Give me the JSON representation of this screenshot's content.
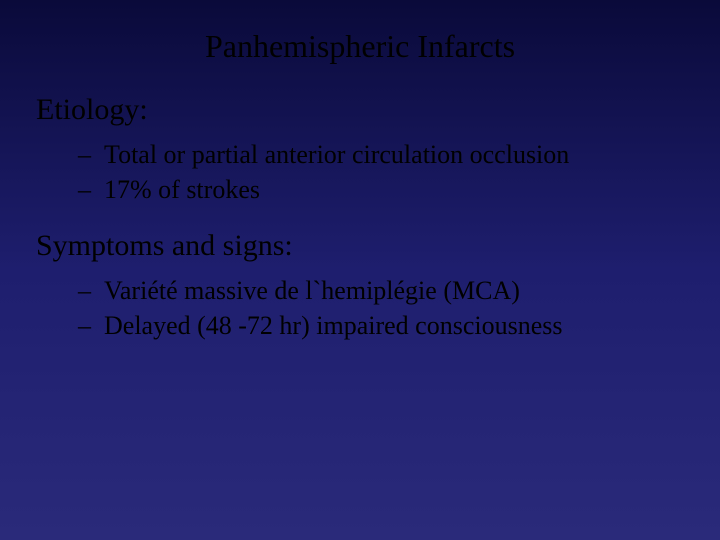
{
  "background": {
    "gradient_top": "#0a0a3a",
    "gradient_mid": "#1e1e6e",
    "gradient_bottom": "#2a2a7a"
  },
  "text_color": "#000000",
  "font_family": "Times New Roman",
  "title": {
    "text": "Panhemispheric Infarcts",
    "fontsize": 32
  },
  "sections": [
    {
      "heading": "Etiology:",
      "heading_fontsize": 30,
      "bullets": [
        "Total or partial anterior circulation occlusion",
        "17% of strokes"
      ],
      "bullet_fontsize": 26,
      "bullet_marker": "–"
    },
    {
      "heading": "Symptoms and signs:",
      "heading_fontsize": 30,
      "bullets": [
        "Variété massive de l`hemiplégie (MCA)",
        "Delayed (48 -72 hr) impaired consciousness"
      ],
      "bullet_fontsize": 26,
      "bullet_marker": "–"
    }
  ]
}
